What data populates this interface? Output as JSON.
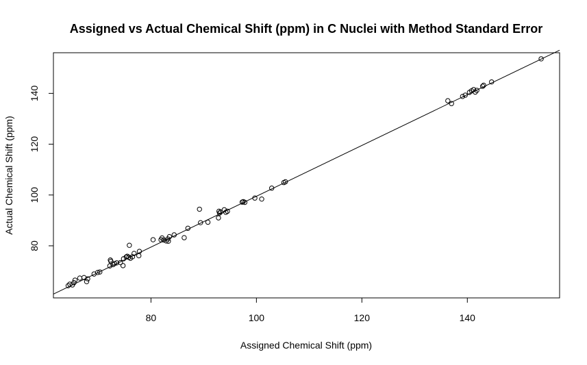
{
  "chart_data": {
    "type": "scatter",
    "title": "Assigned vs Actual Chemical Shift (ppm) in C Nuclei with Method Standard Error",
    "xlabel": "Assigned Chemical Shift (ppm)",
    "ylabel": "Actual Chemical Shift (ppm)",
    "xlim": [
      61.5,
      157.5
    ],
    "ylim": [
      59.5,
      156
    ],
    "xticks": [
      80,
      100,
      120,
      140
    ],
    "yticks": [
      80,
      100,
      120,
      140
    ],
    "grid": false,
    "fit_line": {
      "from": [
        61.5,
        61.0
      ],
      "to": [
        157.5,
        157.0
      ]
    },
    "points": [
      [
        64.3,
        64.3
      ],
      [
        64.6,
        64.9
      ],
      [
        65.1,
        64.6
      ],
      [
        65.4,
        65.5
      ],
      [
        65.6,
        66.5
      ],
      [
        66.5,
        67.3
      ],
      [
        67.3,
        67.5
      ],
      [
        67.8,
        65.9
      ],
      [
        68.0,
        67.0
      ],
      [
        69.2,
        68.9
      ],
      [
        69.9,
        69.5
      ],
      [
        70.3,
        69.7
      ],
      [
        72.2,
        72.1
      ],
      [
        72.3,
        74.4
      ],
      [
        72.4,
        73.9
      ],
      [
        72.8,
        72.6
      ],
      [
        73.1,
        73.0
      ],
      [
        73.5,
        73.3
      ],
      [
        74.2,
        73.4
      ],
      [
        74.7,
        72.2
      ],
      [
        74.8,
        74.9
      ],
      [
        75.3,
        75.6
      ],
      [
        75.5,
        75.9
      ],
      [
        75.8,
        75.5
      ],
      [
        75.9,
        80.2
      ],
      [
        76.1,
        75.1
      ],
      [
        76.5,
        75.7
      ],
      [
        76.8,
        77.0
      ],
      [
        77.7,
        76.1
      ],
      [
        77.8,
        77.8
      ],
      [
        80.4,
        82.4
      ],
      [
        81.9,
        82.4
      ],
      [
        82.1,
        83.1
      ],
      [
        82.4,
        82.3
      ],
      [
        82.9,
        81.9
      ],
      [
        83.2,
        82.7
      ],
      [
        83.3,
        81.8
      ],
      [
        83.5,
        83.6
      ],
      [
        84.4,
        84.3
      ],
      [
        86.3,
        83.2
      ],
      [
        87.0,
        86.9
      ],
      [
        89.2,
        94.4
      ],
      [
        89.4,
        89.1
      ],
      [
        90.8,
        89.3
      ],
      [
        92.8,
        91.0
      ],
      [
        92.9,
        93.6
      ],
      [
        93.0,
        92.9
      ],
      [
        93.2,
        93.3
      ],
      [
        93.9,
        94.2
      ],
      [
        94.2,
        93.2
      ],
      [
        94.5,
        93.6
      ],
      [
        97.3,
        97.2
      ],
      [
        97.5,
        97.4
      ],
      [
        97.8,
        97.1
      ],
      [
        99.7,
        98.8
      ],
      [
        101.0,
        98.4
      ],
      [
        102.9,
        102.7
      ],
      [
        105.2,
        104.9
      ],
      [
        105.5,
        105.2
      ],
      [
        136.3,
        137.1
      ],
      [
        137.0,
        136.0
      ],
      [
        139.1,
        138.8
      ],
      [
        139.6,
        139.3
      ],
      [
        140.4,
        140.4
      ],
      [
        140.8,
        141.0
      ],
      [
        141.2,
        141.5
      ],
      [
        141.5,
        140.5
      ],
      [
        141.8,
        141.2
      ],
      [
        142.9,
        142.8
      ],
      [
        143.1,
        143.2
      ],
      [
        144.6,
        144.5
      ],
      [
        154.0,
        153.6
      ]
    ]
  }
}
